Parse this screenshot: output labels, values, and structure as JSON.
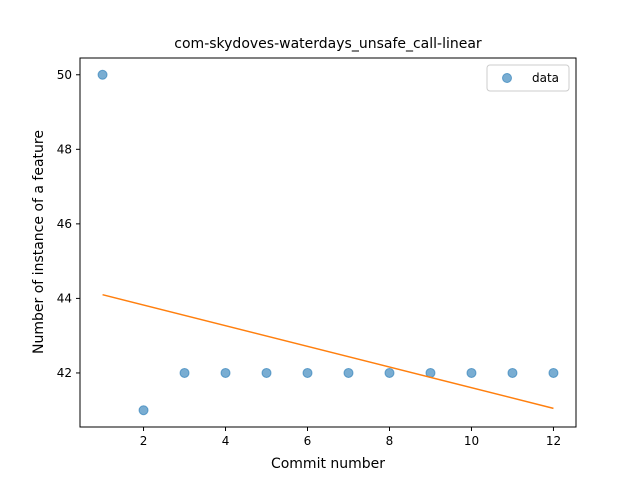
{
  "chart_data": {
    "type": "scatter",
    "title": "com-skydoves-waterdays_unsafe_call-linear",
    "xlabel": "Commit number",
    "ylabel": "Number of instance of a feature",
    "xlim": [
      0.45,
      12.55
    ],
    "ylim": [
      40.55,
      50.45
    ],
    "xticks": [
      2,
      4,
      6,
      8,
      10,
      12
    ],
    "yticks": [
      42,
      44,
      46,
      48,
      50
    ],
    "grid": false,
    "legend_position": "top-right",
    "series": [
      {
        "name": "data",
        "kind": "scatter",
        "color": "#1f77b4",
        "x": [
          1,
          2,
          3,
          4,
          5,
          6,
          7,
          8,
          9,
          10,
          11,
          12
        ],
        "y": [
          50,
          41,
          42,
          42,
          42,
          42,
          42,
          42,
          42,
          42,
          42,
          42
        ]
      },
      {
        "kind": "line",
        "color": "#ff7f0e",
        "x": [
          1,
          12
        ],
        "y": [
          44.1,
          41.05
        ]
      }
    ]
  }
}
